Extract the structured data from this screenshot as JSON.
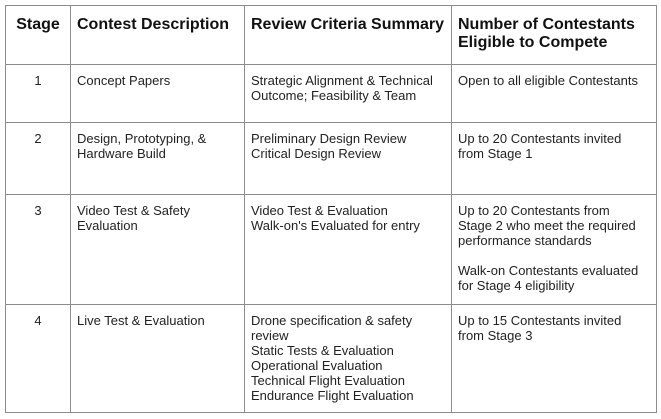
{
  "headers": {
    "stage": "Stage",
    "description": "Contest Description",
    "criteria": "Review Criteria Summary",
    "contestants_line1": "Number of Contestants",
    "contestants_line2": "Eligible to Compete"
  },
  "rows": [
    {
      "stage": "1",
      "description": [
        "Concept Papers"
      ],
      "criteria": [
        "Strategic Alignment & Technical",
        "Outcome; Feasibility & Team"
      ],
      "contestants": [
        "Open to all eligible Contestants"
      ],
      "contestants_extra": []
    },
    {
      "stage": "2",
      "description": [
        "Design, Prototyping, &",
        "Hardware Build"
      ],
      "criteria": [
        "Preliminary Design Review",
        "Critical Design Review"
      ],
      "contestants": [
        "Up to 20 Contestants invited",
        "from Stage 1"
      ],
      "contestants_extra": []
    },
    {
      "stage": "3",
      "description": [
        "Video Test & Safety",
        "Evaluation"
      ],
      "criteria": [
        "Video Test & Evaluation",
        "Walk-on's Evaluated for entry"
      ],
      "contestants": [
        "Up to 20 Contestants from",
        "Stage 2 who meet the required",
        "performance standards"
      ],
      "contestants_extra": [
        "Walk-on Contestants evaluated",
        "for Stage 4 eligibility"
      ]
    },
    {
      "stage": "4",
      "description": [
        "Live Test & Evaluation"
      ],
      "criteria": [
        "Drone specification & safety",
        "review",
        "Static Tests & Evaluation",
        "Operational Evaluation",
        "Technical Flight Evaluation",
        "Endurance Flight Evaluation"
      ],
      "contestants": [
        "Up to 15 Contestants invited",
        "from Stage 3"
      ],
      "contestants_extra": []
    }
  ]
}
